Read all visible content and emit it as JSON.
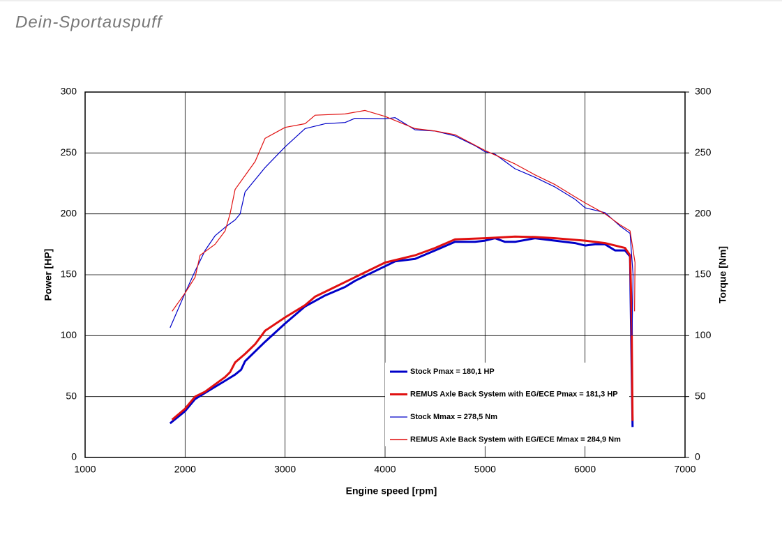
{
  "chart_data": {
    "type": "line",
    "watermark": "Dein-Sportauspuff",
    "x_label": "Engine speed [rpm]",
    "y_label": "Power [HP]",
    "y2_label": "Torque [Nm]",
    "xlim": [
      1000,
      7000
    ],
    "xticks": [
      1000,
      2000,
      3000,
      4000,
      5000,
      6000,
      7000
    ],
    "ylim": [
      0,
      300
    ],
    "yticks": [
      0,
      50,
      100,
      150,
      200,
      250,
      300
    ],
    "y2lim": [
      0,
      300
    ],
    "y2ticks": [
      0,
      50,
      100,
      150,
      200,
      250,
      300
    ],
    "grid": true,
    "series": [
      {
        "name": "Stock Pmax = 180,1 HP",
        "color": "#0000c8",
        "line_width": 3,
        "axis": "y",
        "x": [
          1850,
          2000,
          2100,
          2200,
          2400,
          2500,
          2560,
          2600,
          2800,
          3000,
          3200,
          3400,
          3600,
          3700,
          3800,
          4000,
          4100,
          4300,
          4500,
          4700,
          4900,
          5000,
          5100,
          5200,
          5300,
          5500,
          5700,
          5900,
          6000,
          6100,
          6200,
          6300,
          6400,
          6450,
          6465,
          6475
        ],
        "values": [
          28,
          38,
          48,
          53,
          63,
          68,
          72,
          79,
          95,
          110,
          124,
          133,
          140,
          145,
          149,
          157,
          161,
          163,
          170,
          177,
          177,
          178,
          180,
          177,
          177,
          180,
          178,
          176,
          174,
          175,
          175,
          170,
          170,
          165,
          80,
          25
        ]
      },
      {
        "name": "REMUS Axle Back System with EG/ECE Pmax = 181,3 HP",
        "color": "#e01010",
        "line_width": 3,
        "axis": "y",
        "x": [
          1870,
          2000,
          2100,
          2200,
          2400,
          2450,
          2500,
          2600,
          2700,
          2800,
          3000,
          3200,
          3300,
          3500,
          3800,
          4000,
          4300,
          4500,
          4700,
          5000,
          5300,
          5500,
          5700,
          6000,
          6200,
          6300,
          6400,
          6450,
          6465,
          6475
        ],
        "values": [
          31,
          40,
          50,
          54,
          66,
          70,
          78,
          85,
          93,
          104,
          115,
          125,
          132,
          140,
          152,
          160,
          166,
          172,
          179,
          180,
          181.3,
          181,
          180,
          178,
          176,
          174,
          172,
          166,
          120,
          30
        ]
      },
      {
        "name": "Stock Mmax = 278,5 Nm",
        "color": "#0000c8",
        "line_width": 1.2,
        "axis": "y2",
        "x": [
          1850,
          2000,
          2100,
          2200,
          2300,
          2400,
          2500,
          2550,
          2600,
          2800,
          3000,
          3200,
          3400,
          3600,
          3700,
          4000,
          4100,
          4300,
          4500,
          4700,
          4900,
          5000,
          5100,
          5300,
          5500,
          5700,
          5900,
          6000,
          6200,
          6350,
          6450,
          6480,
          6470
        ],
        "values": [
          106.5,
          135,
          153,
          170,
          182,
          189,
          195,
          200,
          218,
          238,
          255,
          270,
          274,
          275,
          278.5,
          278,
          279,
          269,
          268,
          264,
          256,
          251,
          249,
          237,
          230,
          222,
          212,
          205,
          201,
          190,
          184,
          150,
          100
        ]
      },
      {
        "name": "REMUS Axle Back System with EG/ECE Mmax = 284,9 Nm",
        "color": "#e01010",
        "line_width": 1.2,
        "axis": "y2",
        "x": [
          1870,
          2000,
          2100,
          2150,
          2300,
          2400,
          2450,
          2500,
          2700,
          2800,
          3000,
          3200,
          3300,
          3600,
          3800,
          4000,
          4300,
          4500,
          4700,
          5000,
          5300,
          5500,
          5700,
          5900,
          6000,
          6200,
          6350,
          6450,
          6500,
          6495
        ],
        "values": [
          120,
          135,
          148,
          166,
          175,
          186,
          200,
          220,
          243,
          262,
          271,
          274,
          281,
          282,
          284.9,
          280,
          270,
          268,
          265,
          252,
          241,
          232,
          224,
          214,
          209,
          200,
          191,
          186,
          160,
          120
        ]
      }
    ]
  }
}
